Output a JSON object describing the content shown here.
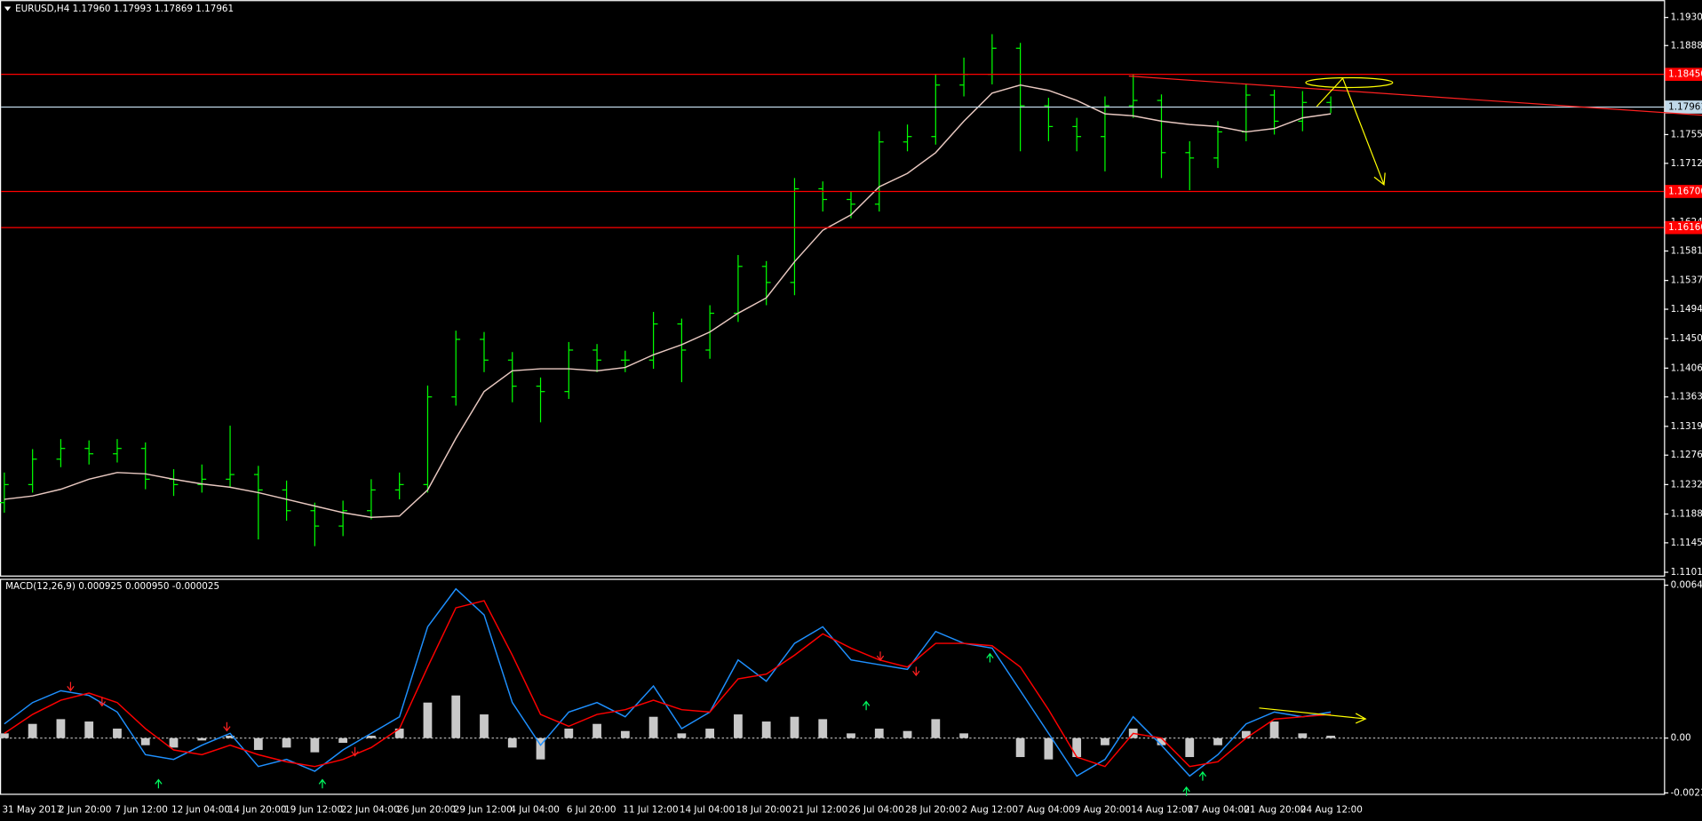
{
  "chart_data": [
    {
      "type": "candlestick",
      "title": "EURUSD,H4  1.17960 1.17993 1.17869 1.17961",
      "color": "#00ff00",
      "open": [
        1.1205,
        1.1232,
        1.127,
        1.1286,
        1.1278,
        1.1286,
        1.124,
        1.1232,
        1.124,
        1.1247,
        1.1224,
        1.1193,
        1.117,
        1.1193,
        1.1224,
        1.1232,
        1.1363,
        1.1449,
        1.1418,
        1.1379,
        1.1371,
        1.1433,
        1.1418,
        1.1418,
        1.1472,
        1.1433,
        1.1488,
        1.1558,
        1.1534,
        1.1674,
        1.1658,
        1.1651,
        1.1744,
        1.1752,
        1.1829,
        1.1845,
        1.1884,
        1.1798,
        1.1767,
        1.1752,
        1.1798,
        1.1806,
        1.1728,
        1.172,
        1.1759,
        1.1814,
        1.1775,
        1.1803
      ],
      "high": [
        1.125,
        1.1285,
        1.13,
        1.1298,
        1.13,
        1.1295,
        1.1255,
        1.1262,
        1.132,
        1.126,
        1.1238,
        1.1205,
        1.1208,
        1.124,
        1.125,
        1.138,
        1.1462,
        1.146,
        1.143,
        1.1392,
        1.1445,
        1.1442,
        1.1432,
        1.149,
        1.148,
        1.15,
        1.1575,
        1.1566,
        1.169,
        1.1685,
        1.167,
        1.176,
        1.177,
        1.1845,
        1.187,
        1.1905,
        1.1892,
        1.181,
        1.178,
        1.1812,
        1.1845,
        1.1815,
        1.1745,
        1.1775,
        1.183,
        1.1822,
        1.182,
        1.1812
      ],
      "low": [
        1.119,
        1.122,
        1.1258,
        1.1262,
        1.1265,
        1.1225,
        1.1215,
        1.122,
        1.1228,
        1.115,
        1.1178,
        1.114,
        1.1155,
        1.118,
        1.121,
        1.122,
        1.135,
        1.14,
        1.1355,
        1.1325,
        1.136,
        1.14,
        1.14,
        1.1405,
        1.1385,
        1.142,
        1.1475,
        1.15,
        1.1515,
        1.164,
        1.163,
        1.164,
        1.173,
        1.174,
        1.1812,
        1.183,
        1.173,
        1.1745,
        1.173,
        1.17,
        1.178,
        1.169,
        1.1672,
        1.1705,
        1.1745,
        1.1755,
        1.176,
        1.1787
      ],
      "close": [
        1.1232,
        1.127,
        1.1286,
        1.1278,
        1.1286,
        1.124,
        1.1232,
        1.124,
        1.1247,
        1.1224,
        1.1193,
        1.117,
        1.1193,
        1.1224,
        1.1232,
        1.1363,
        1.1449,
        1.1418,
        1.1379,
        1.1371,
        1.1433,
        1.1418,
        1.1418,
        1.1472,
        1.1433,
        1.1488,
        1.1558,
        1.1534,
        1.1674,
        1.1658,
        1.1651,
        1.1744,
        1.1752,
        1.1829,
        1.1845,
        1.1884,
        1.1798,
        1.1767,
        1.1752,
        1.1798,
        1.1806,
        1.1728,
        1.172,
        1.1759,
        1.1814,
        1.1775,
        1.1803,
        1.1796
      ],
      "series": [
        {
          "color": "#e8c8c0",
          "values": [
            1.121,
            1.1215,
            1.1225,
            1.124,
            1.125,
            1.1248,
            1.124,
            1.1233,
            1.1228,
            1.122,
            1.121,
            1.12,
            1.119,
            1.1183,
            1.1185,
            1.1224,
            1.1301,
            1.1371,
            1.1402,
            1.1405,
            1.1405,
            1.1402,
            1.1407,
            1.1426,
            1.1441,
            1.146,
            1.1488,
            1.1511,
            1.1565,
            1.1612,
            1.1635,
            1.1677,
            1.1697,
            1.1728,
            1.1775,
            1.1817,
            1.1829,
            1.1821,
            1.1806,
            1.1786,
            1.1783,
            1.1775,
            1.177,
            1.1767,
            1.1759,
            1.1764,
            1.178,
            1.1786
          ]
        }
      ],
      "price_lines": [
        {
          "value": 1.1845,
          "label": "1.18450",
          "color": "#ff0000"
        },
        {
          "value": 1.167,
          "label": "1.16700",
          "color": "#ff0000"
        },
        {
          "value": 1.1616,
          "label": "1.16160",
          "color": "#ff0000"
        },
        {
          "value": 1.17961,
          "label": "1.17961",
          "color": "#c0d8e8"
        }
      ],
      "ylim": [
        1.10961,
        1.19543
      ],
      "yticks": [
        {
          "value": 1.193,
          "label": "1.19300"
        },
        {
          "value": 1.1888,
          "label": "1.18880"
        },
        {
          "value": 1.1755,
          "label": "1.17550"
        },
        {
          "value": 1.1712,
          "label": "1.17120"
        },
        {
          "value": 1.1624,
          "label": "1.16240"
        },
        {
          "value": 1.1581,
          "label": "1.15810"
        },
        {
          "value": 1.1537,
          "label": "1.15370"
        },
        {
          "value": 1.1494,
          "label": "1.14940"
        },
        {
          "value": 1.145,
          "label": "1.14500"
        },
        {
          "value": 1.1406,
          "label": "1.14060"
        },
        {
          "value": 1.1363,
          "label": "1.13630"
        },
        {
          "value": 1.1319,
          "label": "1.13190"
        },
        {
          "value": 1.1276,
          "label": "1.12760"
        },
        {
          "value": 1.1232,
          "label": "1.12320"
        },
        {
          "value": 1.1188,
          "label": "1.11880"
        },
        {
          "value": 1.1145,
          "label": "1.11450"
        },
        {
          "value": 1.1101,
          "label": "1.11010"
        }
      ],
      "grid": false
    },
    {
      "type": "macd",
      "title": "MACD(12,26,9) 0.000925 0.000950 -0.000025",
      "categories": [
        "31 May 2017",
        null,
        "2 Jun 20:00",
        null,
        "7 Jun 12:00",
        null,
        "12 Jun 04:00",
        null,
        "14 Jun 20:00",
        null,
        "19 Jun 12:00",
        null,
        "22 Jun 04:00",
        null,
        "26 Jun 20:00",
        null,
        "29 Jun 12:00",
        null,
        "4 Jul 04:00",
        null,
        "6 Jul 20:00",
        null,
        "11 Jul 12:00",
        null,
        "14 Jul 04:00",
        null,
        "18 Jul 20:00",
        null,
        "21 Jul 12:00",
        null,
        "26 Jul 04:00",
        null,
        "28 Jul 20:00",
        null,
        "2 Aug 12:00",
        null,
        "7 Aug 04:00",
        null,
        "9 Aug 20:00",
        null,
        "14 Aug 12:00",
        null,
        "17 Aug 04:00",
        null,
        "21 Aug 20:00",
        null,
        "24 Aug 12:00",
        null
      ],
      "series": [
        {
          "color": "#1e90ff",
          "values": [
            0.0006,
            0.0015,
            0.002,
            0.0018,
            0.0011,
            -0.0007,
            -0.0009,
            -0.0003,
            0.0002,
            -0.0012,
            -0.0009,
            -0.0014,
            -0.0005,
            0.0002,
            0.0009,
            0.0047,
            0.0063,
            0.0052,
            0.0015,
            -0.0003,
            0.0011,
            0.0015,
            0.0009,
            0.0022,
            0.0004,
            0.0011,
            0.0033,
            0.0024,
            0.004,
            0.0047,
            0.0033,
            0.0031,
            0.0029,
            0.0045,
            0.004,
            0.0038,
            0.002,
            0.0002,
            -0.0016,
            -0.0009,
            0.0009,
            -0.0003,
            -0.0016,
            -0.0007,
            0.0006,
            0.0011,
            0.0009,
            0.0011
          ]
        },
        {
          "color": "#ff0000",
          "values": [
            0.0002,
            0.001,
            0.0016,
            0.0019,
            0.0015,
            0.0004,
            -0.0005,
            -0.0007,
            -0.0003,
            -0.0007,
            -0.001,
            -0.0012,
            -0.0009,
            -0.0004,
            0.0004,
            0.003,
            0.0055,
            0.0058,
            0.0035,
            0.001,
            0.0005,
            0.001,
            0.0012,
            0.0016,
            0.0012,
            0.0011,
            0.0025,
            0.0027,
            0.0035,
            0.0044,
            0.0038,
            0.0033,
            0.003,
            0.004,
            0.004,
            0.0039,
            0.003,
            0.0012,
            -0.0008,
            -0.0012,
            0.0002,
            0.0,
            -0.0012,
            -0.001,
            0.0,
            0.0008,
            0.0009,
            0.001
          ]
        }
      ],
      "histogram": {
        "color": "#c8c8c8",
        "values": [
          0.0002,
          0.0006,
          0.0008,
          0.0007,
          0.0004,
          -0.0003,
          -0.0004,
          -0.0001,
          0.0001,
          -0.0005,
          -0.0004,
          -0.0006,
          -0.0002,
          0.0001,
          0.0004,
          0.0015,
          0.0018,
          0.001,
          -0.0004,
          -0.0009,
          0.0004,
          0.0006,
          0.0003,
          0.0009,
          0.0002,
          0.0004,
          0.001,
          0.0007,
          0.0009,
          0.0008,
          0.0002,
          0.0004,
          0.0003,
          0.0008,
          0.0002,
          0.0,
          -0.0008,
          -0.0009,
          -0.0008,
          -0.0003,
          0.0004,
          -0.0003,
          -0.0008,
          -0.0003,
          0.0003,
          0.0007,
          0.0002,
          0.0001
        ]
      },
      "ylim": [
        -0.00235,
        0.00668
      ],
      "yticks": [
        0.006455,
        {
          "value": 0,
          "label": "0.00"
        },
        -0.002314
      ],
      "zero_line": true
    }
  ]
}
